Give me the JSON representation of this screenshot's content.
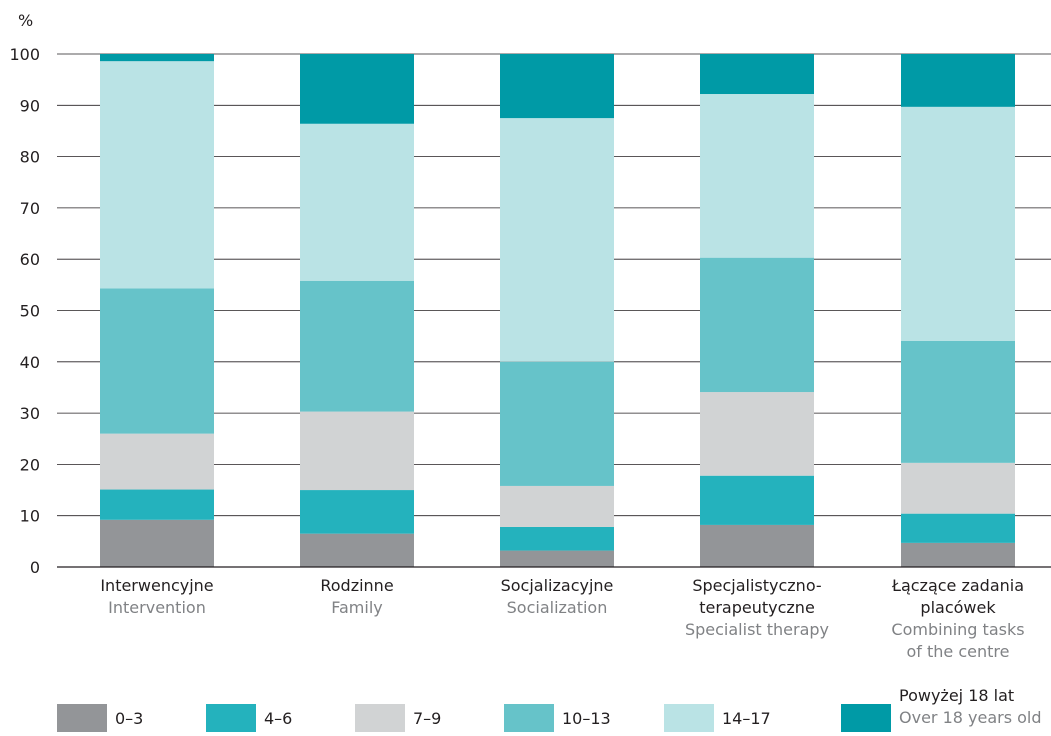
{
  "chart_data": {
    "type": "bar",
    "stacked": true,
    "y_unit_label": "%",
    "ylim": [
      0,
      100
    ],
    "y_ticks": [
      0,
      10,
      20,
      30,
      40,
      50,
      60,
      70,
      80,
      90,
      100
    ],
    "grid": true,
    "legend_position": "bottom",
    "categories": [
      {
        "label": [
          "Interwencyjne"
        ],
        "sublabel": [
          "Intervention"
        ]
      },
      {
        "label": [
          "Rodzinne"
        ],
        "sublabel": [
          "Family"
        ]
      },
      {
        "label": [
          "Socjalizacyjne"
        ],
        "sublabel": [
          "Socialization"
        ]
      },
      {
        "label": [
          "Specjalistyczno-",
          "terapeutyczne"
        ],
        "sublabel": [
          "Specialist therapy"
        ]
      },
      {
        "label": [
          "Łączące zadania",
          "placówek"
        ],
        "sublabel": [
          "Combining tasks",
          "of the centre"
        ]
      }
    ],
    "series": [
      {
        "name": "0–3",
        "color": "#939598",
        "values": [
          9.2,
          6.5,
          3.2,
          8.2,
          4.7
        ]
      },
      {
        "name": "4–6",
        "color": "#24b2bd",
        "values": [
          5.9,
          8.5,
          4.6,
          9.6,
          5.7
        ]
      },
      {
        "name": "7–9",
        "color": "#d1d3d4",
        "values": [
          10.9,
          15.3,
          8.0,
          16.3,
          9.9
        ]
      },
      {
        "name": "10–13",
        "color": "#66c3c9",
        "values": [
          28.3,
          25.5,
          24.2,
          26.2,
          23.8
        ]
      },
      {
        "name": "14–17",
        "color": "#bae3e5",
        "values": [
          44.3,
          30.6,
          47.5,
          31.9,
          45.6
        ]
      },
      {
        "name": "Powyżej 18 lat",
        "sublabel": "Over 18 years old",
        "color": "#009aa6",
        "values": [
          1.4,
          13.6,
          12.5,
          7.8,
          10.3
        ]
      }
    ]
  }
}
